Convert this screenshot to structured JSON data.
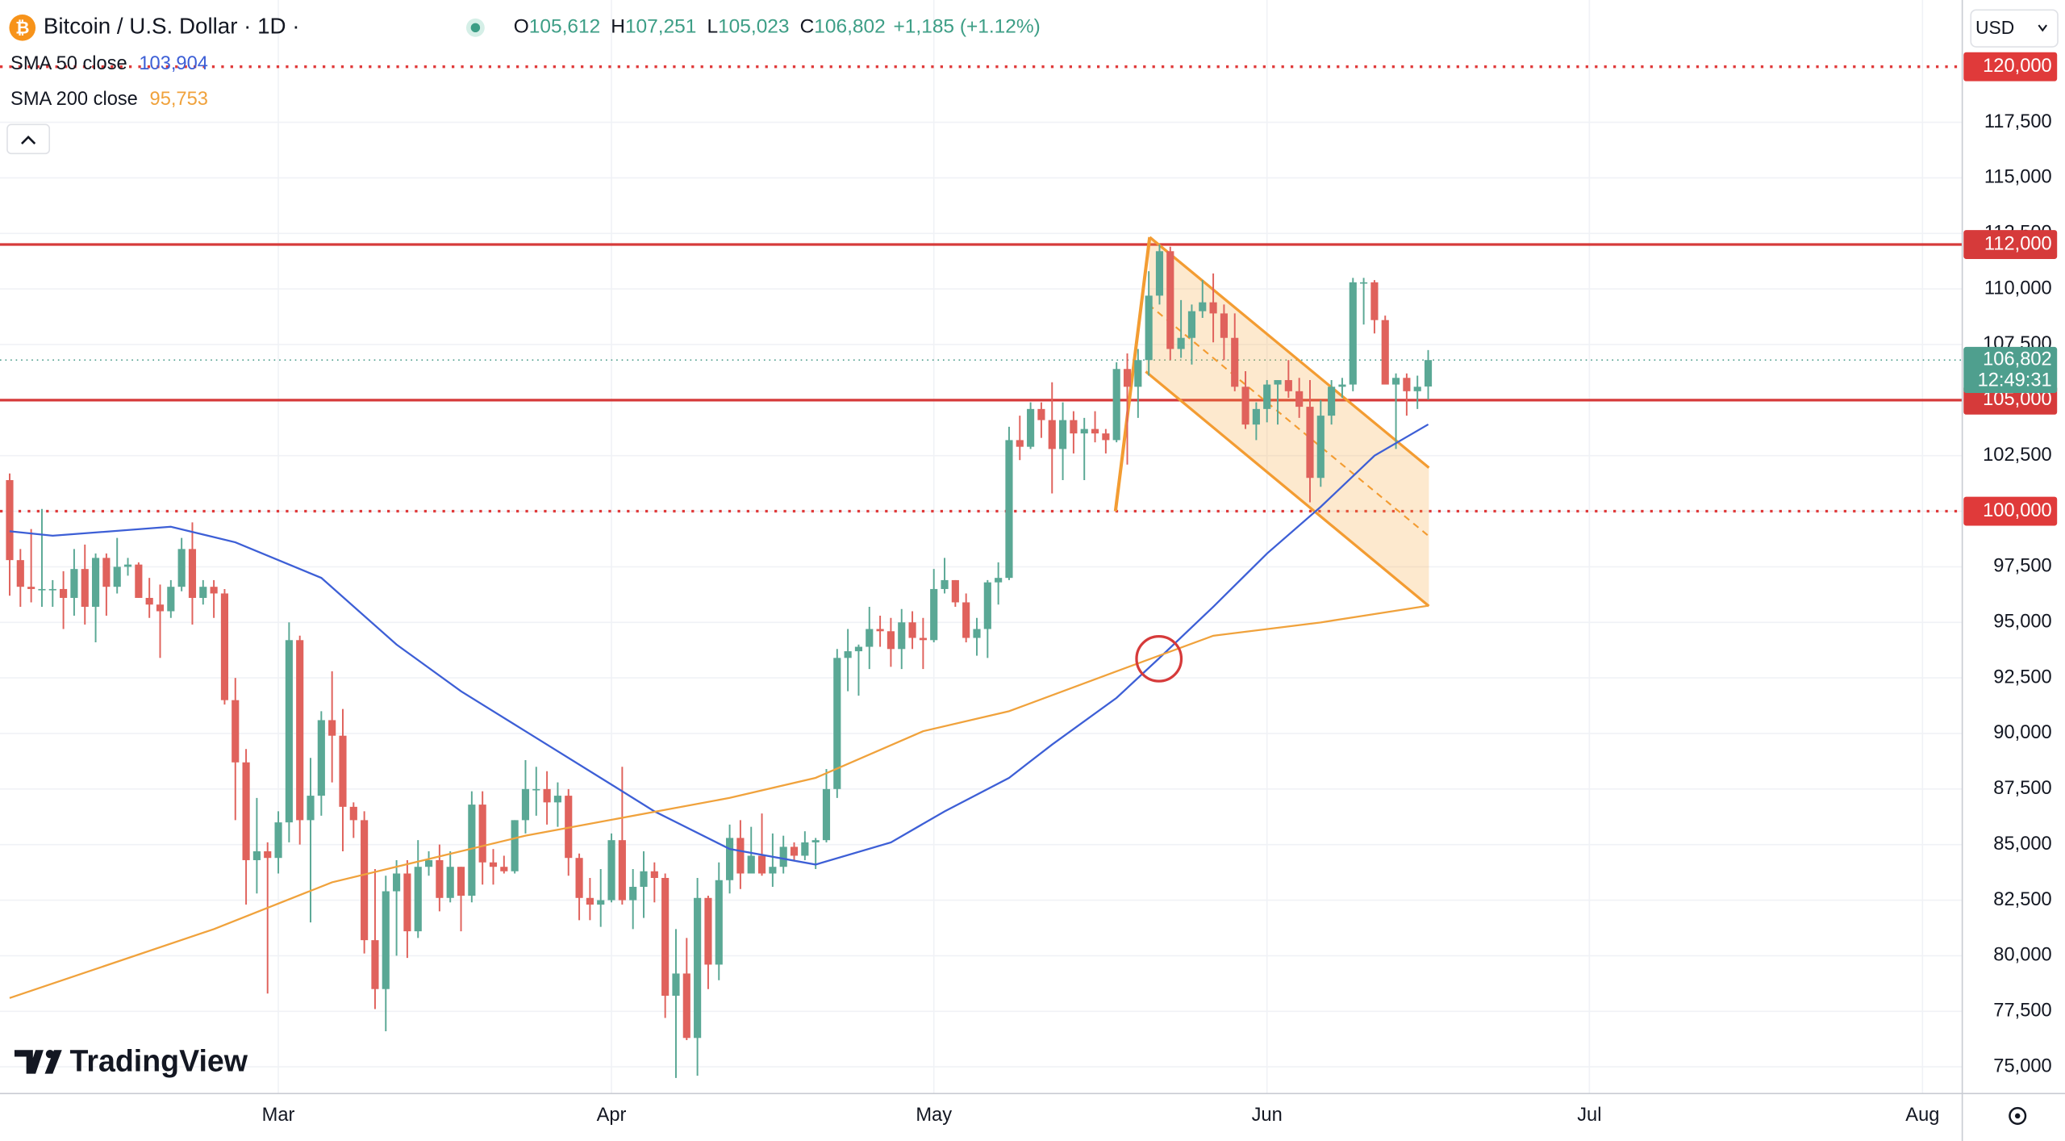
{
  "chart_data": {
    "type": "candlestick",
    "title": "Bitcoin / U.S. Dollar · 1D ·",
    "currency": "USD",
    "ohlc_legend": [
      {
        "key": "O",
        "value": "105,612"
      },
      {
        "key": "H",
        "value": "107,251"
      },
      {
        "key": "L",
        "value": "105,023"
      },
      {
        "key": "C",
        "value": "106,802"
      }
    ],
    "change": "+1,185 (+1.12%)",
    "watermark": "TradingView",
    "up_color": "#5aa895",
    "down_color": "#e0625c",
    "open": [
      101400,
      97800,
      96600,
      96500,
      96500,
      96500,
      96100,
      97400,
      95700,
      97900,
      96600,
      97500,
      97600,
      96100,
      95800,
      95500,
      96600,
      98300,
      96100,
      96600,
      96300,
      91500,
      88700,
      84300,
      84700,
      84400,
      86000,
      94200,
      86100,
      87200,
      90600,
      89900,
      86700,
      86100,
      80700,
      78500,
      82900,
      83700,
      81100,
      84000,
      84300,
      82600,
      84000,
      82700,
      86800,
      84200,
      84000,
      83800,
      86100,
      87500,
      87500,
      86900,
      87200,
      84400,
      82600,
      82300,
      82500,
      85200,
      82500,
      83100,
      83800,
      83500,
      78200,
      79200,
      76300,
      82600,
      79600,
      83400,
      85300,
      83700,
      84500,
      83700,
      84000,
      84900,
      84500,
      85100,
      85200,
      87500,
      93400,
      93700,
      93900,
      94700,
      94600,
      93800,
      95000,
      94300,
      94200,
      96500,
      96900,
      95900,
      94300,
      94700,
      96800,
      97000,
      103200,
      102900,
      104600,
      104100,
      102800,
      104100,
      103500,
      103700,
      103500,
      103200,
      106400,
      105600,
      106800,
      109700,
      111700,
      107300,
      107800,
      109000,
      109400,
      108900,
      107800,
      105600,
      103900,
      104600,
      105700,
      105900,
      105400,
      104700,
      101500,
      104300,
      105600,
      105700,
      110300,
      110300,
      108600,
      105700,
      106000,
      105400,
      105612
    ],
    "high": [
      101700,
      98300,
      99200,
      100100,
      96900,
      97300,
      98300,
      98500,
      98100,
      98100,
      98800,
      97900,
      97700,
      97000,
      96700,
      96900,
      98800,
      99500,
      96900,
      96900,
      96500,
      92500,
      89300,
      87100,
      85100,
      86500,
      95000,
      94400,
      88900,
      91000,
      92800,
      91100,
      86900,
      86500,
      83900,
      83600,
      84300,
      84300,
      85200,
      84700,
      85000,
      84700,
      84000,
      87400,
      87400,
      84800,
      84500,
      86100,
      88800,
      88500,
      88300,
      87800,
      87500,
      84600,
      83500,
      83900,
      85500,
      88500,
      83900,
      84700,
      84200,
      83700,
      81200,
      80800,
      83500,
      82700,
      84200,
      85900,
      86100,
      85800,
      86400,
      85500,
      85400,
      85100,
      85600,
      85300,
      88400,
      93800,
      94700,
      94000,
      95700,
      95300,
      95200,
      95600,
      95500,
      95200,
      97400,
      97900,
      96900,
      96300,
      95200,
      96900,
      97700,
      103800,
      104300,
      104900,
      104900,
      105800,
      104900,
      104500,
      104200,
      104500,
      103700,
      106700,
      107100,
      107300,
      110800,
      112000,
      111900,
      109500,
      109300,
      110400,
      110700,
      109300,
      108900,
      106300,
      104900,
      105900,
      105900,
      106800,
      106000,
      105900,
      105000,
      105900,
      106000,
      110500,
      110500,
      110400,
      108800,
      106200,
      106200,
      106100,
      107251
    ],
    "low": [
      96200,
      95700,
      95900,
      95700,
      95700,
      94700,
      95300,
      94900,
      94100,
      95300,
      96300,
      97100,
      96100,
      95200,
      93400,
      95200,
      96400,
      94900,
      95800,
      95200,
      91300,
      86100,
      82300,
      82800,
      78300,
      83700,
      85100,
      85000,
      81500,
      86300,
      87800,
      84700,
      85300,
      80100,
      77600,
      76600,
      80000,
      79900,
      80800,
      83600,
      82000,
      82400,
      81100,
      82400,
      83200,
      83200,
      83700,
      83700,
      85500,
      86300,
      85900,
      85800,
      83600,
      81600,
      81600,
      81300,
      82400,
      82300,
      81200,
      81700,
      82400,
      77200,
      74500,
      76200,
      74600,
      78500,
      78900,
      82800,
      83000,
      83700,
      83600,
      83100,
      83700,
      84300,
      84300,
      83900,
      85100,
      87100,
      91900,
      91700,
      92900,
      93900,
      93000,
      92900,
      93800,
      92900,
      94100,
      96300,
      95700,
      94100,
      93500,
      93400,
      95800,
      96900,
      102300,
      102800,
      103300,
      100800,
      101400,
      102600,
      101400,
      103100,
      102600,
      103100,
      102100,
      104200,
      106100,
      109300,
      106800,
      106900,
      106600,
      108700,
      107600,
      106800,
      105400,
      103700,
      103200,
      104000,
      103900,
      105100,
      104200,
      100400,
      101100,
      103900,
      105100,
      105400,
      108400,
      108000,
      105700,
      102800,
      104300,
      104600,
      105023
    ],
    "close": [
      97800,
      96600,
      96500,
      96500,
      96500,
      96100,
      97400,
      95700,
      97900,
      96600,
      97500,
      97600,
      96100,
      95800,
      95500,
      96600,
      98300,
      96100,
      96600,
      96300,
      91500,
      88700,
      84300,
      84700,
      84400,
      86000,
      94200,
      86100,
      87200,
      90600,
      89900,
      86700,
      86100,
      80700,
      78500,
      82900,
      83700,
      81100,
      84000,
      84300,
      82600,
      84000,
      82700,
      86800,
      84200,
      84000,
      83800,
      86100,
      87500,
      87500,
      86900,
      87200,
      84400,
      82600,
      82300,
      82500,
      85200,
      82500,
      83100,
      83800,
      83500,
      78200,
      79200,
      76300,
      82600,
      79600,
      83400,
      85300,
      83700,
      84500,
      83700,
      84000,
      84900,
      84500,
      85100,
      85200,
      87500,
      93400,
      93700,
      93900,
      94700,
      94600,
      93800,
      95000,
      94300,
      94200,
      96500,
      96900,
      95900,
      94300,
      94700,
      96800,
      97000,
      103200,
      102900,
      104600,
      104100,
      102800,
      104100,
      103500,
      103700,
      103500,
      103200,
      106400,
      105600,
      106800,
      109700,
      111700,
      107300,
      107800,
      109000,
      109400,
      108900,
      107800,
      105600,
      103900,
      104600,
      105700,
      105900,
      105400,
      104700,
      101500,
      104300,
      105600,
      105700,
      110300,
      110300,
      108600,
      105700,
      106000,
      105400,
      105600,
      106802
    ],
    "series": [
      {
        "name": "SMA 50 close",
        "value_label": "103,904",
        "color": "#3d5fd6",
        "x": [
          0,
          4,
          15,
          21,
          29,
          36,
          42,
          48,
          55,
          60,
          67,
          75,
          82,
          87,
          93,
          97,
          103,
          107,
          112,
          117,
          122,
          127,
          132
        ],
        "values": [
          99100,
          98900,
          99300,
          98600,
          97000,
          94000,
          91900,
          90100,
          88000,
          86500,
          84800,
          84100,
          85100,
          86500,
          88000,
          89500,
          91600,
          93400,
          95700,
          98100,
          100200,
          102500,
          103904
        ]
      },
      {
        "name": "SMA 200 close",
        "value_label": "95,753",
        "color": "#f0a23c",
        "x": [
          0,
          19,
          30,
          48,
          67,
          75,
          85,
          93,
          103,
          112,
          122,
          132
        ],
        "values": [
          78100,
          81200,
          83300,
          85400,
          87100,
          88000,
          90100,
          91000,
          92800,
          94400,
          95000,
          95753
        ]
      }
    ],
    "price_lines": [
      {
        "value": 120000,
        "label": "120,000",
        "style": "dotted",
        "color": "#e03a3a"
      },
      {
        "value": 112000,
        "label": "112,000",
        "style": "solid",
        "color": "#d63a3a"
      },
      {
        "value": 105000,
        "label": "105,000",
        "style": "solid",
        "color": "#d63a3a"
      },
      {
        "value": 100000,
        "label": "100,000",
        "style": "dotted",
        "color": "#e03a3a"
      }
    ],
    "last_price": {
      "value": 106802,
      "label": "106,802",
      "countdown": "12:49:31",
      "color": "#4f9f8e"
    },
    "xlim": [
      -0.9,
      181.7
    ],
    "xticks": [
      {
        "value": 25,
        "label": "Mar"
      },
      {
        "value": 56,
        "label": "Apr"
      },
      {
        "value": 86,
        "label": "May"
      },
      {
        "value": 117,
        "label": "Jun"
      },
      {
        "value": 147,
        "label": "Jul"
      },
      {
        "value": 178,
        "label": "Aug"
      }
    ],
    "ylim": [
      73800,
      123000
    ],
    "yticks": [
      {
        "value": 75000,
        "label": "75,000"
      },
      {
        "value": 77500,
        "label": "77,500"
      },
      {
        "value": 80000,
        "label": "80,000"
      },
      {
        "value": 82500,
        "label": "82,500"
      },
      {
        "value": 85000,
        "label": "85,000"
      },
      {
        "value": 87500,
        "label": "87,500"
      },
      {
        "value": 90000,
        "label": "90,000"
      },
      {
        "value": 92500,
        "label": "92,500"
      },
      {
        "value": 95000,
        "label": "95,000"
      },
      {
        "value": 97500,
        "label": "97,500"
      },
      {
        "value": 100000,
        "label": "100,000"
      },
      {
        "value": 102500,
        "label": "102,500"
      },
      {
        "value": 105000,
        "label": "105,000"
      },
      {
        "value": 107500,
        "label": "107,500"
      },
      {
        "value": 110000,
        "label": "110,000"
      },
      {
        "value": 112500,
        "label": "112,500"
      },
      {
        "value": 115000,
        "label": "115,000"
      },
      {
        "value": 117500,
        "label": "117,500"
      }
    ],
    "grid": true
  }
}
